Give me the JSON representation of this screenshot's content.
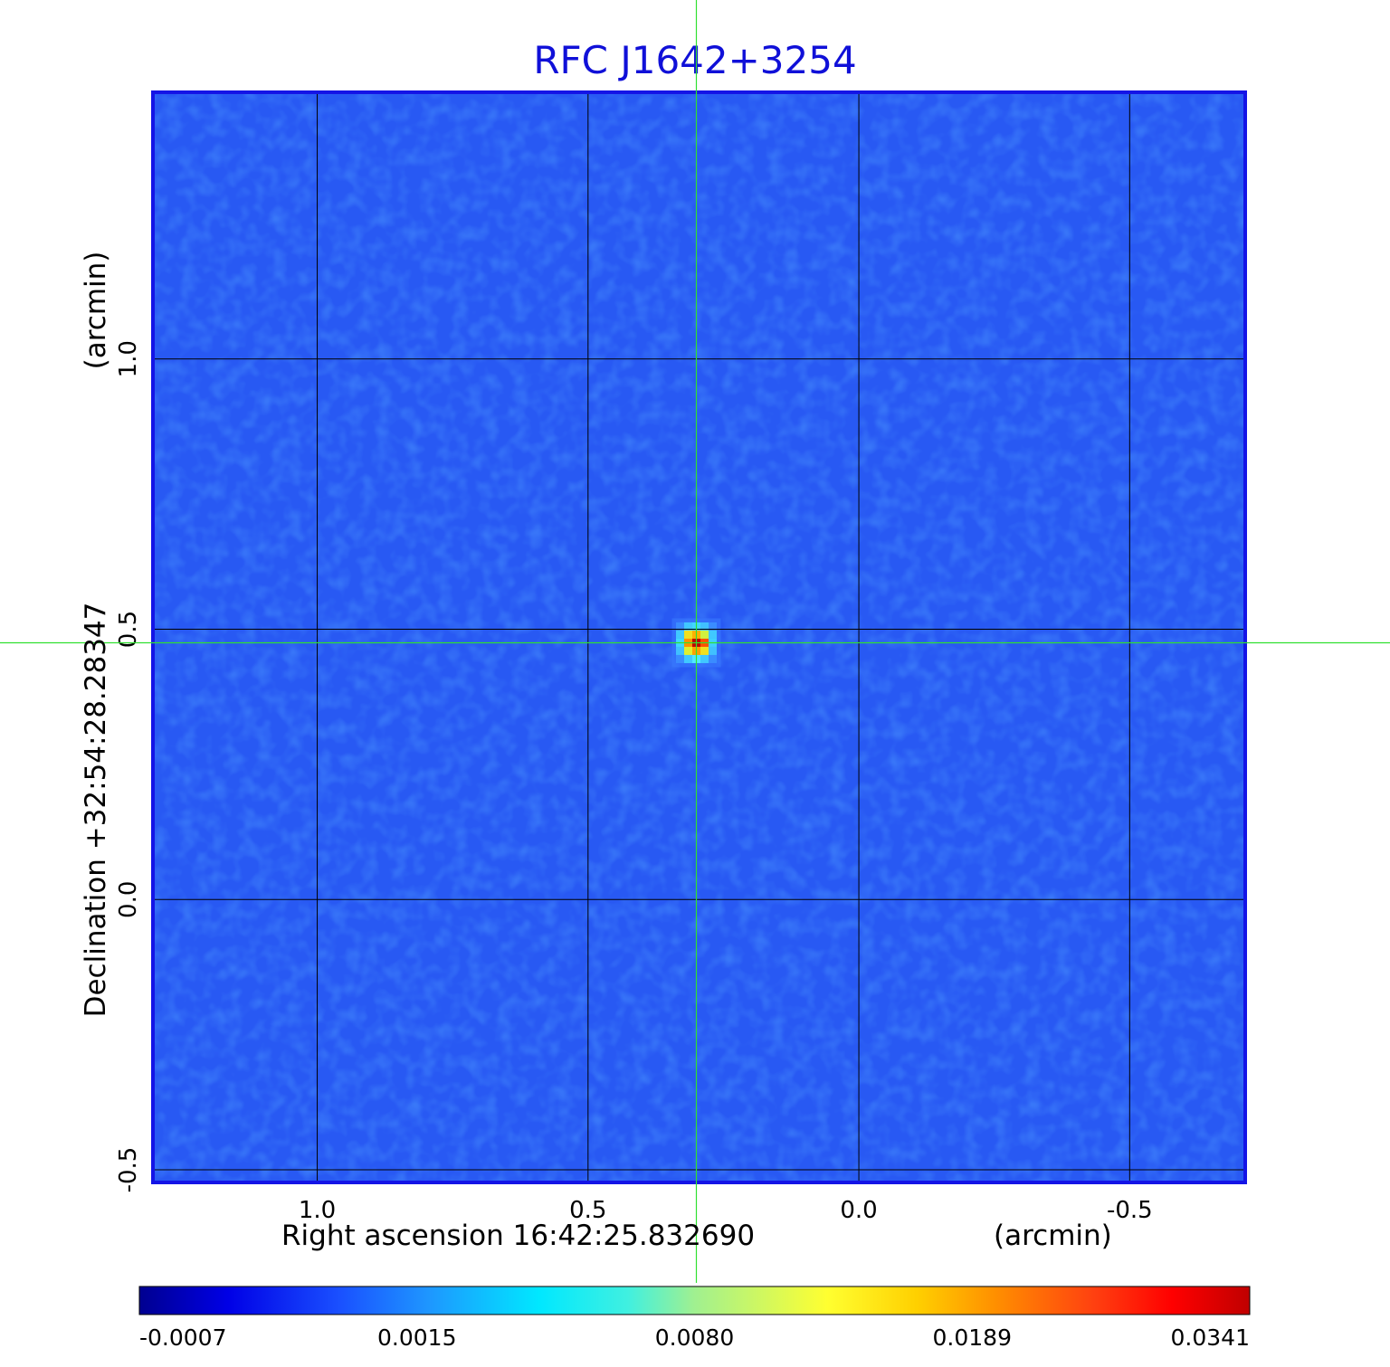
{
  "title": "RFC J1642+3254",
  "chart_data": {
    "type": "heatmap",
    "title": "RFC J1642+3254",
    "xlabel": "Right ascension  16:42:25.832690",
    "xunit": "(arcmin)",
    "ylabel": "Declination  +32:54:28.28347",
    "yunit": "(arcmin)",
    "x_range": [
      1.3,
      -0.71
    ],
    "y_range": [
      -0.52,
      1.49
    ],
    "x_ticks": [
      {
        "value": 1.0,
        "label": "1.0"
      },
      {
        "value": 0.5,
        "label": "0.5"
      },
      {
        "value": 0.0,
        "label": "0.0"
      },
      {
        "value": -0.5,
        "label": "-0.5"
      }
    ],
    "y_ticks": [
      {
        "value": -0.5,
        "label": "-0.5"
      },
      {
        "value": 0.0,
        "label": "0.0"
      },
      {
        "value": 0.5,
        "label": "0.5"
      },
      {
        "value": 1.0,
        "label": "1.0"
      }
    ],
    "grid": true,
    "source_peak": {
      "x": 0.3,
      "y": 0.475
    },
    "crosshair": {
      "x": 0.3,
      "y": 0.475
    },
    "background_level": -0.0003,
    "peak_value": 0.0341,
    "colorbar": {
      "colormap": "jet",
      "scale": "non-linear",
      "placement": "bottom",
      "ticks": [
        {
          "value": -0.0007,
          "label": "-0.0007"
        },
        {
          "value": 0.0015,
          "label": "0.0015"
        },
        {
          "value": 0.008,
          "label": "0.0080"
        },
        {
          "value": 0.0189,
          "label": "0.0189"
        },
        {
          "value": 0.0341,
          "label": "0.0341"
        }
      ]
    }
  },
  "colors": {
    "title": "#1010d8",
    "frame": "#1414e6",
    "grid": "#000000",
    "crosshair": "#30e030",
    "background_map": "#2a5cf5"
  }
}
